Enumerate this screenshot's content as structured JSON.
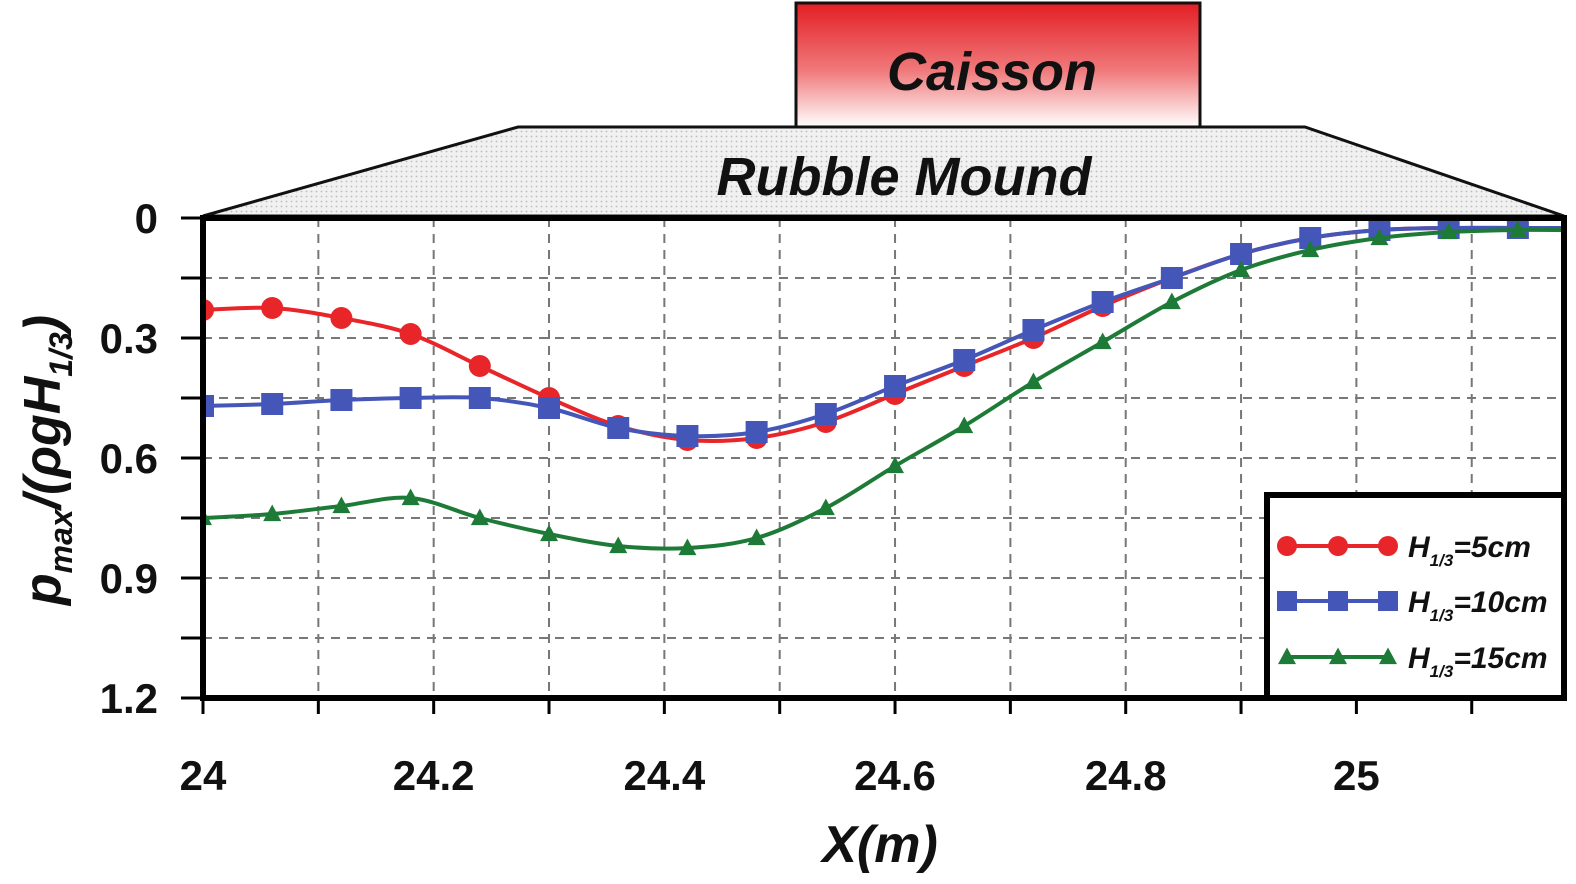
{
  "structure": {
    "caisson_label": "Caisson",
    "mound_label": "Rubble Mound"
  },
  "chart_data": {
    "type": "line",
    "xlabel": "X(m)",
    "ylabel": {
      "main": "p",
      "sub": "max",
      "mid": "/(ρgH",
      "sub2": "1/3",
      "end": ")"
    },
    "xlim": [
      24.0,
      25.18
    ],
    "ylim": [
      0,
      1.2
    ],
    "y_inverted": true,
    "x_ticks": [
      24,
      24.2,
      24.4,
      24.6,
      24.8,
      25
    ],
    "x_tick_labels": [
      "24",
      "24.2",
      "24.4",
      "24.6",
      "24.8",
      "25"
    ],
    "y_ticks": [
      0,
      0.3,
      0.6,
      0.9,
      1.2
    ],
    "y_tick_labels": [
      "0",
      "0.3",
      "0.6",
      "0.9",
      "1.2"
    ],
    "grid": true,
    "legend_position": "bottom-right",
    "x": [
      24.0,
      24.06,
      24.12,
      24.18,
      24.24,
      24.3,
      24.36,
      24.42,
      24.48,
      24.54,
      24.6,
      24.66,
      24.72,
      24.78,
      24.84,
      24.9,
      24.96,
      25.02,
      25.08,
      25.14
    ],
    "series": [
      {
        "name": "H_{1/3}=5cm",
        "legend_main": "H",
        "legend_sub": "1/3",
        "legend_rest": "=5cm",
        "color": "#e8262a",
        "marker": "circle",
        "values": [
          0.23,
          0.225,
          0.25,
          0.29,
          0.37,
          0.45,
          0.52,
          0.555,
          0.55,
          0.51,
          0.44,
          0.37,
          0.3,
          0.22,
          0.15,
          0.09,
          0.05,
          0.03,
          0.025,
          0.025
        ]
      },
      {
        "name": "H_{1/3}=10cm",
        "legend_main": "H",
        "legend_sub": "1/3",
        "legend_rest": "=10cm",
        "color": "#4457b8",
        "marker": "square",
        "values": [
          0.47,
          0.465,
          0.455,
          0.45,
          0.45,
          0.475,
          0.525,
          0.545,
          0.535,
          0.49,
          0.42,
          0.355,
          0.28,
          0.21,
          0.15,
          0.09,
          0.05,
          0.03,
          0.025,
          0.025
        ]
      },
      {
        "name": "H_{1/3}=15cm",
        "legend_main": "H",
        "legend_sub": "1/3",
        "legend_rest": "=15cm",
        "color": "#1e7a37",
        "marker": "triangle",
        "values": [
          0.75,
          0.74,
          0.72,
          0.7,
          0.75,
          0.79,
          0.82,
          0.825,
          0.8,
          0.725,
          0.62,
          0.52,
          0.41,
          0.31,
          0.21,
          0.13,
          0.08,
          0.05,
          0.035,
          0.03
        ]
      }
    ]
  }
}
